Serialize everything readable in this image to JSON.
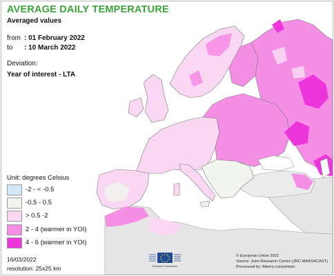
{
  "header": {
    "title": "AVERAGE DAILY TEMPERATURE",
    "subtitle": "Averaged values"
  },
  "period": {
    "from_label": "from",
    "from_value": ": 01 February 2022",
    "to_label": "to",
    "to_value": ": 10 March 2022"
  },
  "deviation": {
    "label": "Deviation:",
    "value": "Year of interest - LTA"
  },
  "legend": {
    "unit": "Unit: degrees Celsius",
    "items": [
      {
        "label": "-2 - < -0.5",
        "color": "#d5e8f5"
      },
      {
        "label": "-0.5 - 0.5",
        "color": "#f1f4ef"
      },
      {
        "label": "> 0.5 -2",
        "color": "#fad7f3"
      },
      {
        "label": "2 - 4 (warmer in YOI)",
        "color": "#f58fe6"
      },
      {
        "label": "4 - 6 (warmer in YOI)",
        "color": "#ec36dc"
      }
    ]
  },
  "colors": {
    "title_green": "#3ba23a",
    "sea": "#ffffff",
    "outside_land": "#e9e9e9",
    "border": "#5a5a5a"
  },
  "footer": {
    "date": "16/03/2022",
    "resolution": "resolution: 25x25 km",
    "logo_text": "European Commission",
    "credits": [
      "© European Union 2022",
      "Source: Joint Research Centre (JRC MARS4CAST)",
      "Processed by: Alterra consortium"
    ]
  }
}
